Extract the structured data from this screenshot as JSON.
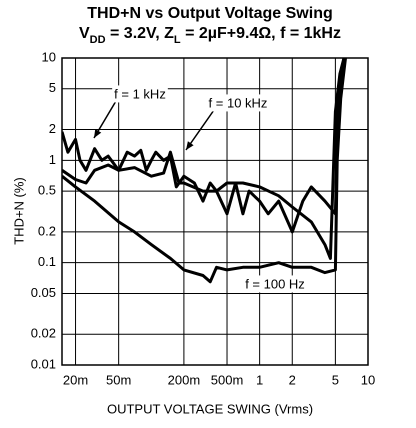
{
  "chart_data": {
    "type": "line",
    "title": "THD+N vs Output Voltage Swing",
    "subtitle_parts": [
      {
        "text": "V"
      },
      {
        "text": "DD",
        "sub": true
      },
      {
        "text": " = 3.2V, Z"
      },
      {
        "text": "L",
        "sub": true
      },
      {
        "text": " = 2µF+9.4Ω, f = 1kHz"
      }
    ],
    "x_label": "OUTPUT VOLTAGE SWING (Vrms)",
    "y_label": "THD+N (%)",
    "xscale": "log",
    "yscale": "log",
    "grid": true,
    "xlim": [
      0.015,
      10
    ],
    "ylim": [
      0.01,
      10
    ],
    "xticks": [
      {
        "value": 0.02,
        "label": "20m"
      },
      {
        "value": 0.05,
        "label": "50m"
      },
      {
        "value": 0.2,
        "label": "200m"
      },
      {
        "value": 0.5,
        "label": "500m"
      },
      1,
      2,
      5,
      10
    ],
    "yticks": [
      0.01,
      0.02,
      0.05,
      0.1,
      0.2,
      0.5,
      1,
      2,
      5,
      10
    ],
    "series": [
      {
        "name": "f = 1 kHz",
        "color": "#000000",
        "x": [
          0.015,
          0.017,
          0.02,
          0.022,
          0.025,
          0.03,
          0.035,
          0.04,
          0.05,
          0.06,
          0.07,
          0.08,
          0.09,
          0.1,
          0.11,
          0.13,
          0.15,
          0.17,
          0.2,
          0.25,
          0.3,
          0.35,
          0.4,
          0.5,
          0.6,
          0.7,
          0.8,
          1,
          1.2,
          1.5,
          2,
          2.5,
          3,
          4,
          5,
          5.3,
          6
        ],
        "values": [
          1.9,
          1.2,
          1.6,
          1.0,
          0.8,
          1.3,
          1.0,
          1.1,
          0.8,
          1.2,
          1.1,
          1.25,
          0.8,
          1.0,
          1.2,
          1.0,
          1.1,
          0.55,
          0.7,
          0.6,
          0.4,
          0.6,
          0.5,
          0.3,
          0.6,
          0.3,
          0.5,
          0.4,
          0.3,
          0.4,
          0.2,
          0.4,
          0.55,
          0.4,
          0.3,
          4,
          10
        ]
      },
      {
        "name": "f = 10 kHz",
        "color": "#000000",
        "x": [
          0.015,
          0.02,
          0.025,
          0.03,
          0.04,
          0.05,
          0.07,
          0.1,
          0.13,
          0.15,
          0.18,
          0.2,
          0.3,
          0.4,
          0.5,
          0.7,
          1,
          1.5,
          2,
          3,
          4,
          4.5,
          5,
          5.5,
          6
        ],
        "values": [
          0.8,
          0.65,
          0.6,
          0.8,
          0.9,
          0.8,
          0.85,
          0.7,
          0.75,
          1.2,
          0.6,
          0.6,
          0.5,
          0.5,
          0.6,
          0.6,
          0.55,
          0.45,
          0.35,
          0.25,
          0.15,
          0.11,
          3,
          7,
          10
        ]
      },
      {
        "name": "f = 100 Hz",
        "color": "#000000",
        "x": [
          0.015,
          0.02,
          0.03,
          0.05,
          0.07,
          0.1,
          0.15,
          0.2,
          0.3,
          0.35,
          0.4,
          0.5,
          0.7,
          1,
          1.5,
          2,
          3,
          4,
          5,
          5.2,
          5.6,
          6.2
        ],
        "values": [
          0.7,
          0.55,
          0.4,
          0.25,
          0.2,
          0.15,
          0.11,
          0.085,
          0.075,
          0.065,
          0.09,
          0.085,
          0.09,
          0.09,
          0.1,
          0.09,
          0.09,
          0.08,
          0.085,
          1,
          4,
          10
        ]
      }
    ]
  }
}
